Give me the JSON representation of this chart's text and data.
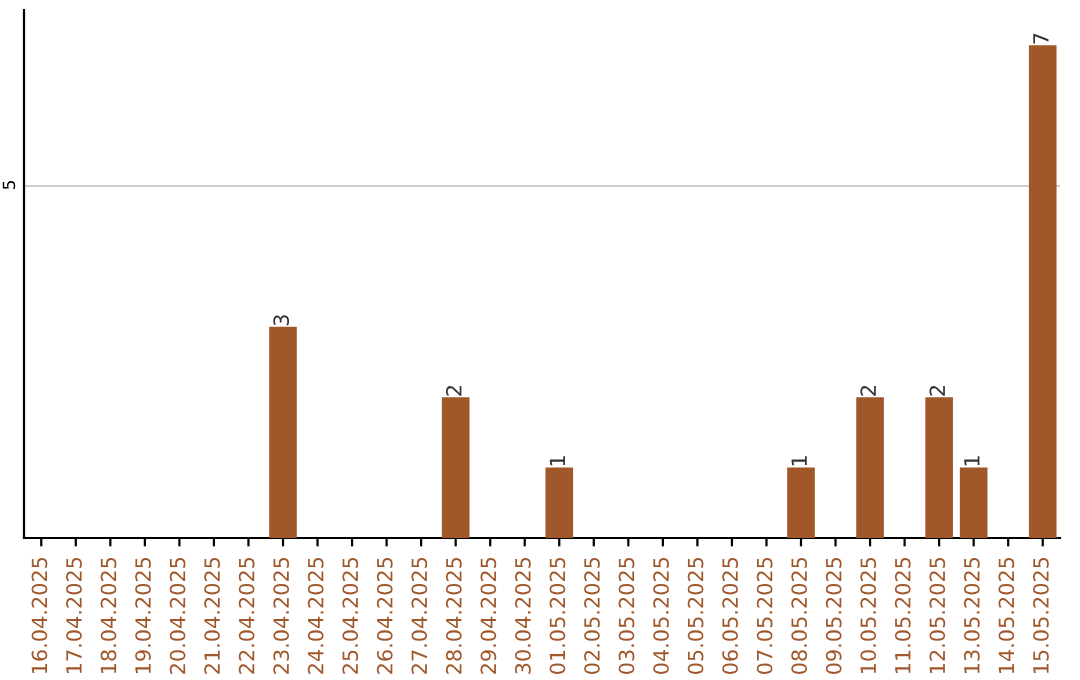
{
  "chart_data": {
    "type": "bar",
    "categories": [
      "16.04.2025",
      "17.04.2025",
      "18.04.2025",
      "19.04.2025",
      "20.04.2025",
      "21.04.2025",
      "22.04.2025",
      "23.04.2025",
      "24.04.2025",
      "25.04.2025",
      "26.04.2025",
      "27.04.2025",
      "28.04.2025",
      "29.04.2025",
      "30.04.2025",
      "01.05.2025",
      "02.05.2025",
      "03.05.2025",
      "04.05.2025",
      "05.05.2025",
      "06.05.2025",
      "07.05.2025",
      "08.05.2025",
      "09.05.2025",
      "10.05.2025",
      "11.05.2025",
      "12.05.2025",
      "13.05.2025",
      "14.05.2025",
      "15.05.2025"
    ],
    "values": [
      0,
      0,
      0,
      0,
      0,
      0,
      0,
      3,
      0,
      0,
      0,
      0,
      2,
      0,
      0,
      1,
      0,
      0,
      0,
      0,
      0,
      0,
      1,
      0,
      2,
      0,
      2,
      1,
      0,
      7
    ],
    "value_labels": [
      null,
      null,
      null,
      null,
      null,
      null,
      null,
      "3",
      null,
      null,
      null,
      null,
      "2",
      null,
      null,
      "1",
      null,
      null,
      null,
      null,
      null,
      null,
      "1",
      null,
      "2",
      null,
      "2",
      "1",
      null,
      "7"
    ],
    "color": "#a0572a",
    "ylim": [
      0,
      7.5
    ],
    "yticks": [
      5
    ],
    "grid": "y"
  }
}
